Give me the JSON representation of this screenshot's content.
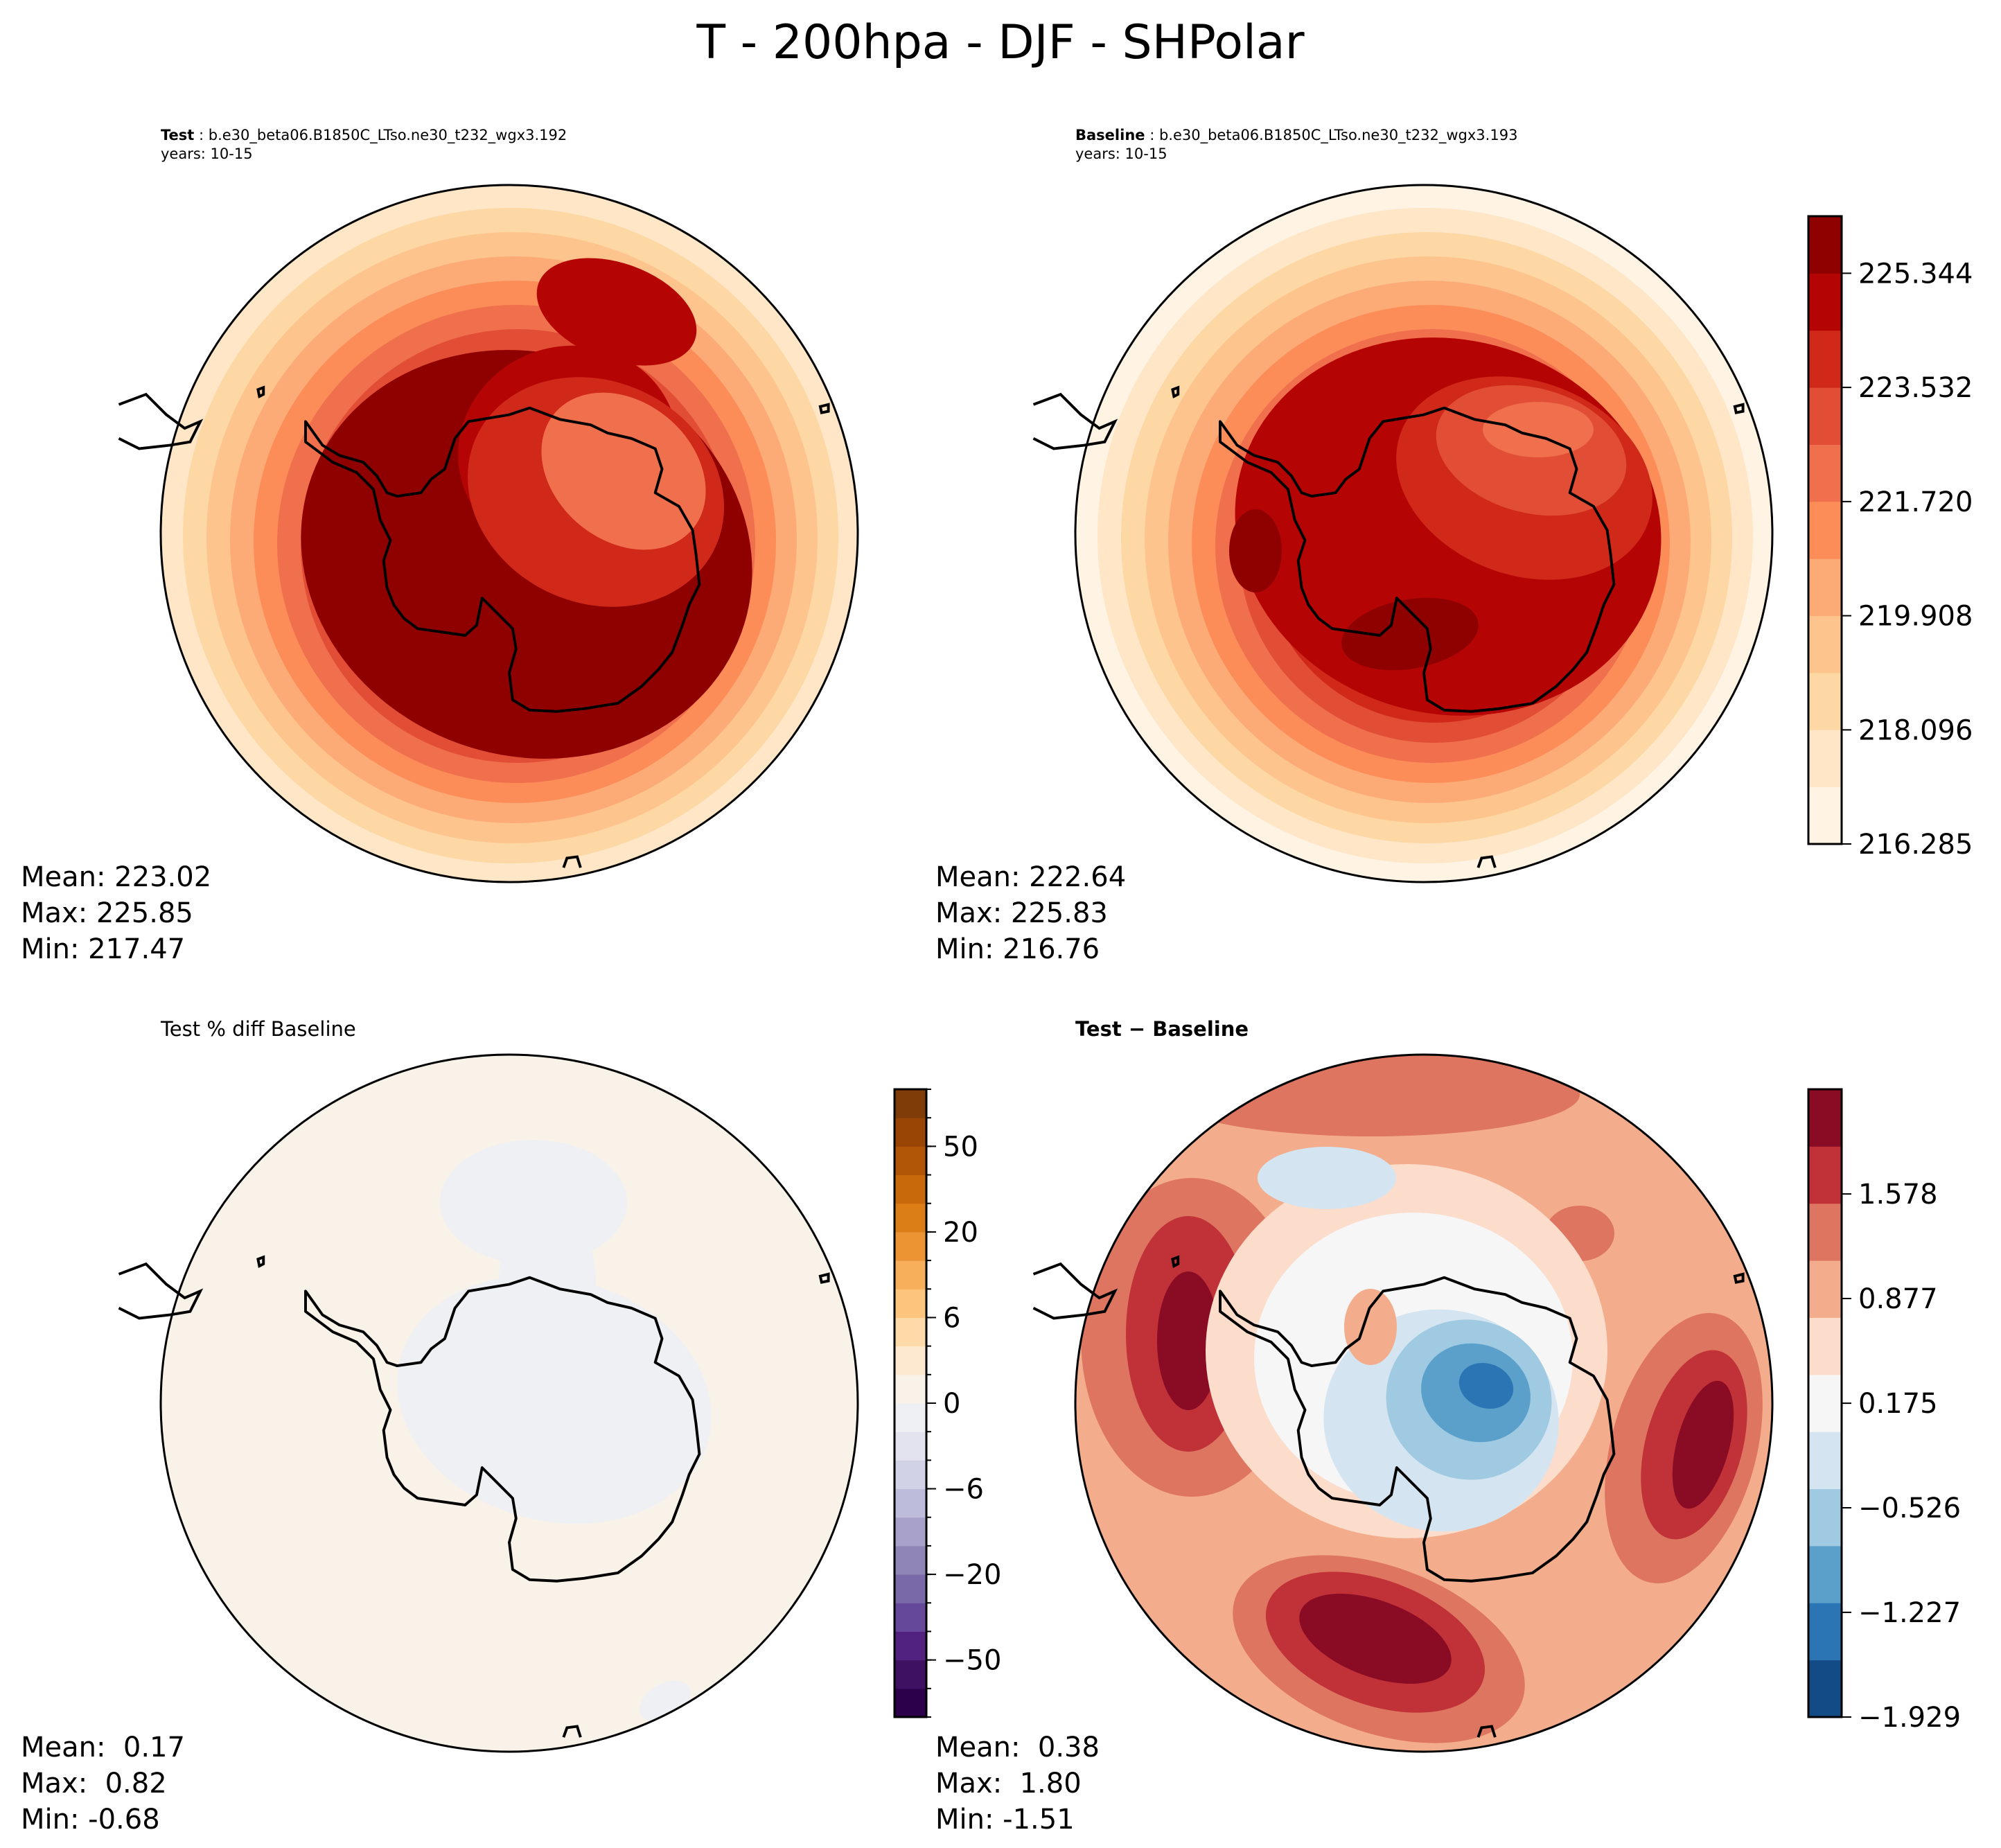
{
  "suptitle": "T - 200hpa - DJF - SHPolar",
  "chart_data": [
    {
      "type": "heatmap",
      "panel": "test",
      "projection": "south-polar-stereographic",
      "title_bold": "Test",
      "title_rest": " : b.e30_beta06.B1850C_LTso.ne30_t232_wgx3.192",
      "subtitle": "years: 10-15",
      "stats": {
        "mean_label": "Mean: 223.02",
        "max_label": "Max: 225.85",
        "min_label": "Min: 217.47",
        "mean": 223.02,
        "max": 225.85,
        "min": 217.47
      },
      "colorbar": "shared-with-baseline",
      "description": "Concentric warm rings: coolest (~216-218) at outer edge, warmest (>225.3) in broad band over the Southern Ocean surrounding Antarctica, relative minimum (~222-223) over East Antarctic plateau."
    },
    {
      "type": "heatmap",
      "panel": "baseline",
      "projection": "south-polar-stereographic",
      "title_bold": "Baseline",
      "title_rest": " : b.e30_beta06.B1850C_LTso.ne30_t232_wgx3.193",
      "subtitle": "years: 10-15",
      "stats": {
        "mean_label": "Mean: 222.64",
        "max_label": "Max: 225.83",
        "min_label": "Min: 216.76",
        "mean": 222.64,
        "max": 225.83,
        "min": 216.76
      },
      "colorbar": {
        "cmap": "OrRd",
        "levels": [
          216.285,
          217.191,
          218.096,
          219.002,
          219.908,
          220.814,
          221.72,
          222.626,
          223.532,
          224.438,
          225.344,
          226.25
        ],
        "tick_labels": [
          "225.344",
          "223.532",
          "221.720",
          "219.908",
          "218.096",
          "216.285"
        ],
        "tick_values": [
          225.344,
          223.532,
          221.72,
          219.908,
          218.096,
          216.285
        ],
        "colors": [
          "#fff3e3",
          "#fee6c6",
          "#fdd7a4",
          "#fdc48e",
          "#fcab77",
          "#fc8d59",
          "#f06f4d",
          "#e14d35",
          "#d02819",
          "#b50404",
          "#8f0000"
        ]
      }
    },
    {
      "type": "heatmap",
      "panel": "percent-diff",
      "projection": "south-polar-stereographic",
      "title": "Test % diff Baseline",
      "stats": {
        "mean_label": "Mean:  0.17",
        "max_label": "Max:  0.82",
        "min_label": "Min: -0.68",
        "mean": 0.17,
        "max": 0.82,
        "min": -0.68
      },
      "colorbar": {
        "cmap": "PuOr_r",
        "tick_labels": [
          "50",
          "20",
          "6",
          "0",
          "−6",
          "−20",
          "−50"
        ],
        "tick_values": [
          50,
          20,
          6,
          0,
          -6,
          -20,
          -50
        ],
        "colors": [
          "#2d004b",
          "#3f1163",
          "#522281",
          "#66489a",
          "#7a69a8",
          "#8f85b6",
          "#a8a2ca",
          "#bebcdb",
          "#d2d2e6",
          "#e3e3ef",
          "#eff0f3",
          "#f8f2e8",
          "#fde9cf",
          "#fedaa9",
          "#fdc47d",
          "#f7af5c",
          "#ec9434",
          "#dc7e16",
          "#c86a0c",
          "#b15506",
          "#984506",
          "#7f3b08"
        ],
        "description": "Nearly uniform near-zero field; slight negative (0 to -1%) over Antarctica and a northward lobe, slight positive elsewhere."
      }
    },
    {
      "type": "heatmap",
      "panel": "difference",
      "projection": "south-polar-stereographic",
      "title": "Test − Baseline",
      "stats": {
        "mean_label": "Mean:  0.38",
        "max_label": "Max:  1.80",
        "min_label": "Min: -1.51",
        "mean": 0.38,
        "max": 1.8,
        "min": -1.51
      },
      "colorbar": {
        "cmap": "RdBu_r",
        "tick_labels": [
          "1.578",
          "0.877",
          "0.175",
          "−0.526",
          "−1.227",
          "−1.929"
        ],
        "tick_values": [
          1.578,
          0.877,
          0.175,
          -0.526,
          -1.227,
          -1.929
        ],
        "colors": [
          "#134b87",
          "#2c75b4",
          "#5aa0cb",
          "#9fcae1",
          "#d4e5f1",
          "#f6f6f6",
          "#fcdccb",
          "#f3ad8c",
          "#de7560",
          "#c03138",
          "#8a0b24"
        ],
        "description": "Cooling (to ~-1.5) over East Antarctica; warming maxima (~1.8) in three lobes over the Southern Ocean (west, east, south)."
      }
    }
  ]
}
